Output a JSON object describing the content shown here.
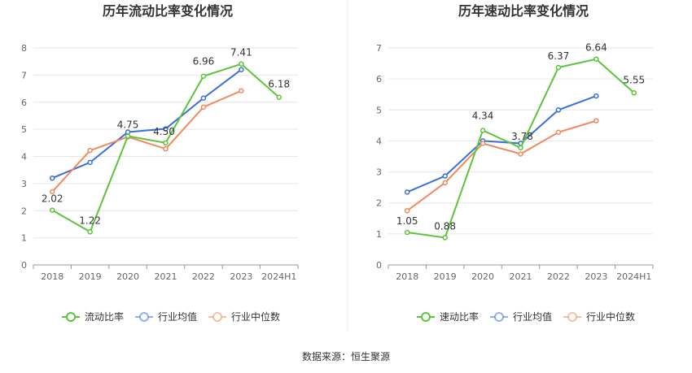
{
  "source": "数据来源：恒生聚源",
  "chart_data": [
    {
      "type": "line",
      "title": "历年流动比率变化情况",
      "categories": [
        "2018",
        "2019",
        "2020",
        "2021",
        "2022",
        "2023",
        "2024H1"
      ],
      "ylim": [
        0,
        8
      ],
      "yticks": [
        0,
        1,
        2,
        3,
        4,
        5,
        6,
        7,
        8
      ],
      "grid": true,
      "legend_position": "bottom",
      "series": [
        {
          "name": "流动比率",
          "color": "#5cc43a",
          "values": [
            2.02,
            1.22,
            4.75,
            4.5,
            6.96,
            7.41,
            6.18
          ],
          "labels": [
            "2.02",
            "1.22",
            "4.75",
            "4.50",
            "6.96",
            "7.41",
            "6.18"
          ]
        },
        {
          "name": "行业均值",
          "color": "#3a6fd8",
          "values": [
            3.2,
            3.78,
            4.9,
            5.02,
            6.15,
            7.2,
            null
          ]
        },
        {
          "name": "行业中位数",
          "color": "#f08a5d",
          "values": [
            2.7,
            4.22,
            4.72,
            4.28,
            5.82,
            6.42,
            null
          ]
        }
      ]
    },
    {
      "type": "line",
      "title": "历年速动比率变化情况",
      "categories": [
        "2018",
        "2019",
        "2020",
        "2021",
        "2022",
        "2023",
        "2024H1"
      ],
      "ylim": [
        0,
        7
      ],
      "yticks": [
        0,
        1,
        2,
        3,
        4,
        5,
        6,
        7
      ],
      "grid": true,
      "legend_position": "bottom",
      "series": [
        {
          "name": "速动比率",
          "color": "#5cc43a",
          "values": [
            1.05,
            0.88,
            4.34,
            3.78,
            6.37,
            6.64,
            5.55
          ],
          "labels": [
            "1.05",
            "0.88",
            "4.34",
            "3.78",
            "6.37",
            "6.64",
            "5.55"
          ]
        },
        {
          "name": "行业均值",
          "color": "#3a6fd8",
          "values": [
            2.35,
            2.87,
            4.0,
            3.92,
            5.0,
            5.45,
            null
          ]
        },
        {
          "name": "行业中位数",
          "color": "#f08a5d",
          "values": [
            1.75,
            2.65,
            3.92,
            3.58,
            4.28,
            4.65,
            null
          ]
        }
      ]
    }
  ]
}
